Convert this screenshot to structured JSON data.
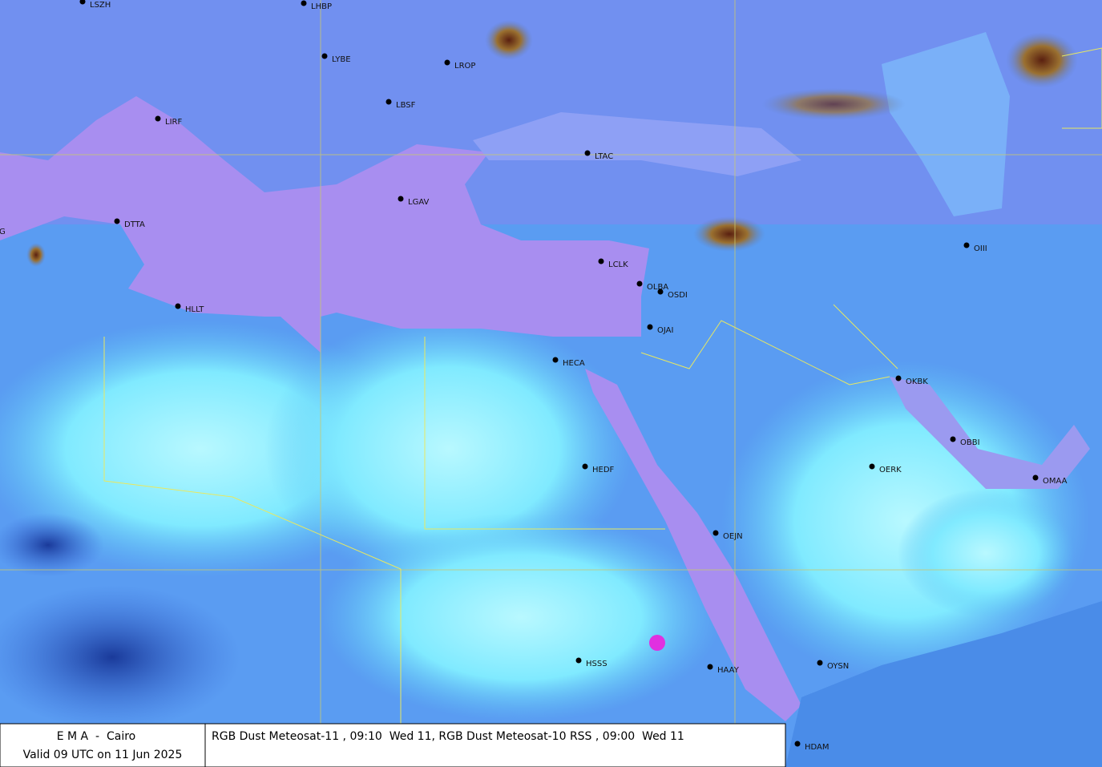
{
  "stations": [
    {
      "label": "LSZH"
    },
    {
      "label": "LHBP"
    },
    {
      "label": "LYBE"
    },
    {
      "label": "LROP"
    },
    {
      "label": "LBSF"
    },
    {
      "label": "LIRF"
    },
    {
      "label": "LTAC"
    },
    {
      "label": "LGAV"
    },
    {
      "label": "DTTA"
    },
    {
      "label": "OIII"
    },
    {
      "label": "LCLK"
    },
    {
      "label": "OLBA"
    },
    {
      "label": "OSDI"
    },
    {
      "label": "HLLT"
    },
    {
      "label": "OJAI"
    },
    {
      "label": "HECA"
    },
    {
      "label": "OKBK"
    },
    {
      "label": "OBBI"
    },
    {
      "label": "OERK"
    },
    {
      "label": "HEDF"
    },
    {
      "label": "OMAA"
    },
    {
      "label": "OEJN"
    },
    {
      "label": "HSSS"
    },
    {
      "label": "OYSN"
    },
    {
      "label": "HAAY"
    },
    {
      "label": "HDAM"
    },
    {
      "label": "G"
    }
  ],
  "footer": {
    "agency": "E M A  -  Cairo",
    "valid": "Valid 09 UTC on 11 Jun 2025",
    "product": "RGB Dust Meteosat-11 , 09:10  Wed 11, RGB Dust Meteosat-10 RSS , 09:00  Wed 11"
  }
}
